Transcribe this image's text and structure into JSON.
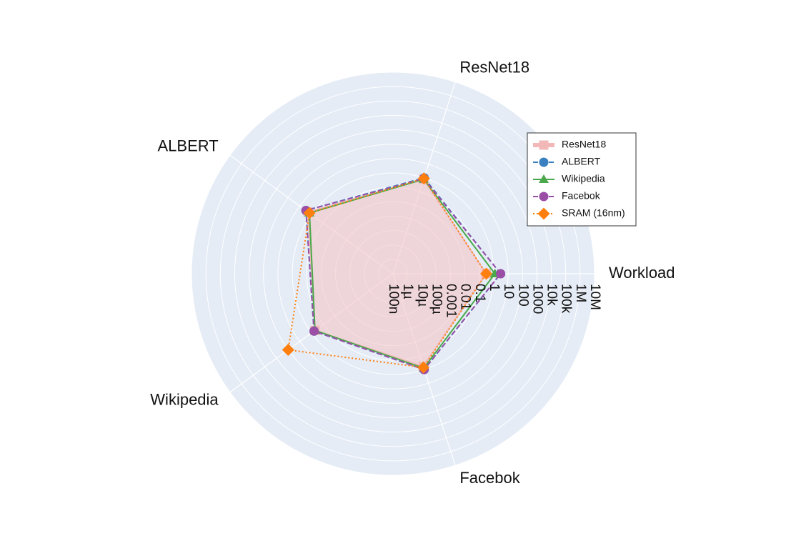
{
  "chart_data": {
    "type": "radar",
    "axes": [
      "Workload",
      "ResNet18",
      "ALBERT",
      "Wikipedia",
      "Facebok"
    ],
    "radial_scale": "log",
    "radial_ticks": [
      "100n",
      "1µ",
      "10µ",
      "100µ",
      "0.001",
      "0.01",
      "0.1",
      "1",
      "10",
      "100",
      "1000",
      "10k",
      "100k",
      "1M",
      "10M"
    ],
    "radial_range": [
      "100n",
      "10M"
    ],
    "grid": true,
    "legend_position": "top-right",
    "background_color": "#e5ecf6",
    "series": [
      {
        "name": "ResNet18",
        "color": "#f2b8b8",
        "line": "solid",
        "marker": "square",
        "filled": true,
        "fill_color": "#f4c6c6",
        "values": [
          0.3,
          0.8,
          2.0,
          0.5,
          0.6
        ]
      },
      {
        "name": "ALBERT",
        "color": "#3a80c0",
        "line": "dashed",
        "marker": "circle",
        "values": [
          3.0,
          1.0,
          3.0,
          0.6,
          1.0
        ]
      },
      {
        "name": "Wikipedia",
        "color": "#4aa84a",
        "line": "solid",
        "marker": "triangle",
        "values": [
          1.2,
          0.8,
          1.5,
          0.5,
          0.8
        ]
      },
      {
        "name": "Facebok",
        "color": "#9a4ea6",
        "line": "dashed",
        "marker": "circle",
        "values": [
          3.0,
          0.9,
          3.0,
          0.6,
          1.0
        ]
      },
      {
        "name": "SRAM (16nm)",
        "color": "#ff7f0e",
        "line": "dotted",
        "marker": "diamond",
        "values": [
          0.3,
          0.9,
          1.5,
          100,
          0.7
        ]
      }
    ]
  }
}
